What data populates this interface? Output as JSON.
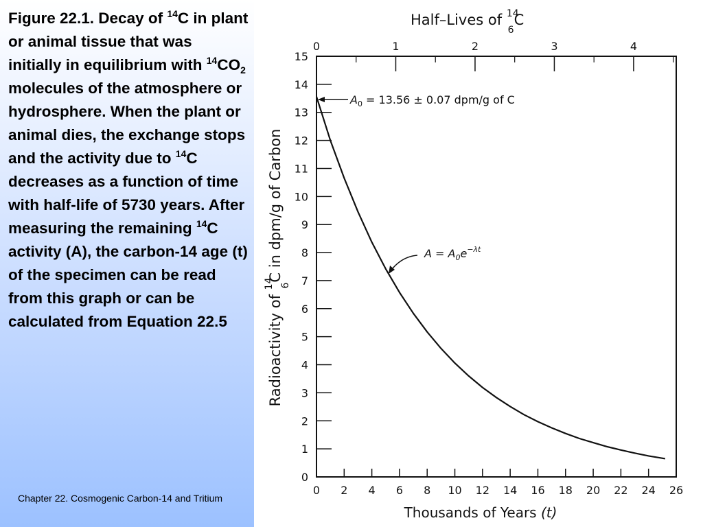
{
  "caption": {
    "p1": "Figure 22.1. Decay of ",
    "sup1": "14",
    "p2": "C in plant or animal tissue that was initially in equilibrium with ",
    "sup2": "14",
    "p3": "CO",
    "sub1": "2",
    "p4": " molecules of the atmosphere or hydrosphere.  When the plant or animal dies, the exchange stops and the activity due to ",
    "sup3": "14",
    "p5": "C decreases as a function of time with half-life of 5730 years.  After measuring the remaining ",
    "sup4": "14",
    "p6": "C activity (A), the carbon-14 age (t) of the specimen can be read from this graph or can be calculated from Equation 22.5"
  },
  "footer": "Chapter 22. Cosmogenic Carbon-14 and Tritium",
  "chart_data": {
    "type": "line",
    "title": "Half–Lives of ¹⁴₆C",
    "xlabel": "Thousands of Years (t)",
    "ylabel": "Radioactivity of ¹⁴₆C in dpm/g of Carbon",
    "xlim": [
      0,
      26
    ],
    "ylim": [
      0,
      15
    ],
    "x_ticks": [
      0,
      2,
      4,
      6,
      8,
      10,
      12,
      14,
      16,
      18,
      20,
      22,
      24,
      26
    ],
    "y_ticks": [
      0,
      1,
      2,
      3,
      4,
      5,
      6,
      7,
      8,
      9,
      10,
      11,
      12,
      13,
      14,
      15
    ],
    "top_axis": {
      "label_ticks": [
        0,
        1,
        2,
        3,
        4
      ],
      "unit_thousand_years": 5.73
    },
    "grid": false,
    "A0": 13.56,
    "half_life_thousand_years": 5.73,
    "series": [
      {
        "x": [
          0,
          1,
          2,
          3,
          4,
          5,
          6,
          7,
          8,
          9,
          10,
          11,
          12,
          13,
          14,
          15,
          16,
          17,
          18,
          19,
          20,
          21,
          22,
          23,
          24,
          25.2
        ],
        "values": [
          13.56,
          12.0,
          10.66,
          9.45,
          8.37,
          7.42,
          6.58,
          5.83,
          5.17,
          4.58,
          4.06,
          3.6,
          3.19,
          2.83,
          2.51,
          2.22,
          1.97,
          1.75,
          1.55,
          1.37,
          1.22,
          1.08,
          0.96,
          0.85,
          0.75,
          0.65
        ]
      }
    ],
    "annotations": {
      "a0_label": "A",
      "a0_sub": "0",
      "a0_value": " = 13.56 ± 0.07 dpm/g of C",
      "eq_label": "A = A",
      "eq_sub": "0",
      "eq_e": "e",
      "eq_exp": "−λt"
    }
  }
}
